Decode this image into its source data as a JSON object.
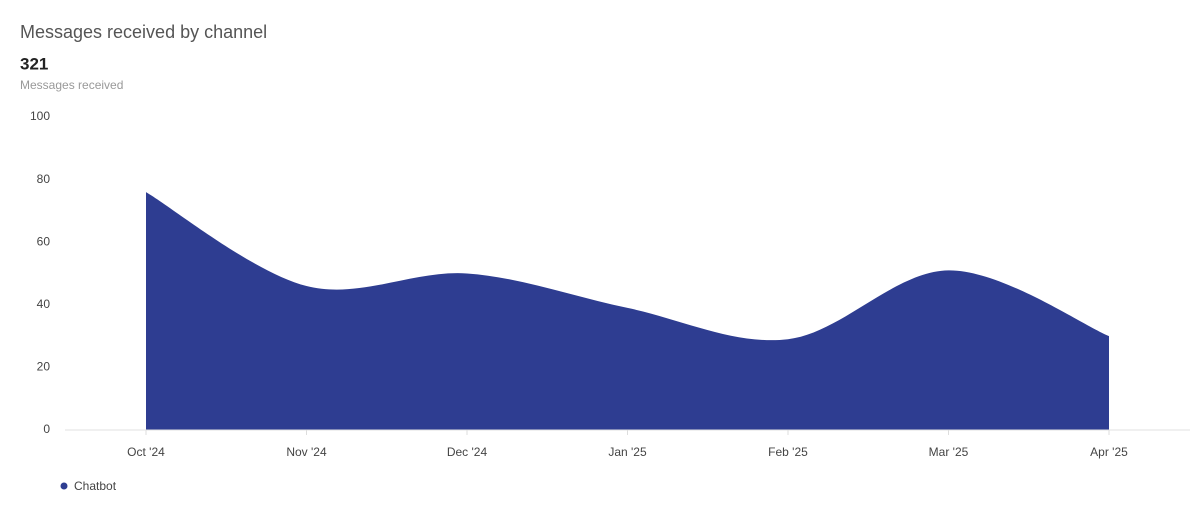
{
  "title": "Messages received by channel",
  "total": 321,
  "total_label": "Messages received",
  "chart_data": {
    "type": "area",
    "categories": [
      "Oct '24",
      "Nov '24",
      "Dec '24",
      "Jan '25",
      "Feb '25",
      "Mar '25",
      "Apr '25"
    ],
    "series": [
      {
        "name": "Chatbot",
        "color": "#2e3d91",
        "values": [
          76,
          46,
          50,
          39,
          29,
          51,
          30
        ]
      }
    ],
    "ylim": [
      0,
      100
    ],
    "yticks": [
      0,
      20,
      40,
      60,
      80,
      100
    ],
    "grid": false,
    "legend": "bottom-left"
  }
}
